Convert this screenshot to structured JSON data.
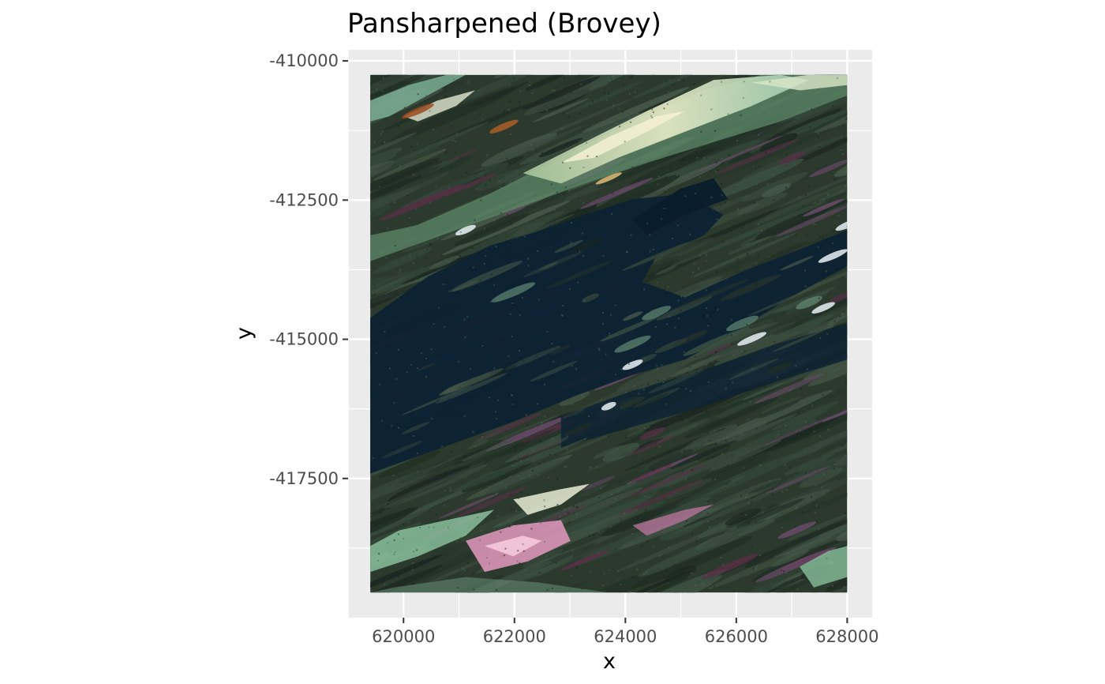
{
  "chart_data": {
    "type": "heatmap",
    "title": "Pansharpened (Brovey)",
    "xlabel": "x",
    "ylabel": "y",
    "xlim": [
      619000,
      628450
    ],
    "ylim": [
      -420000,
      -409800
    ],
    "raster_extent": {
      "x": [
        619400,
        628000
      ],
      "y": [
        -419550,
        -410250
      ]
    },
    "x_ticks": [
      620000,
      622000,
      624000,
      626000,
      628000
    ],
    "x_tick_labels": [
      "620000",
      "622000",
      "624000",
      "626000",
      "628000"
    ],
    "y_ticks": [
      -410000,
      -412500,
      -415000,
      -417500
    ],
    "y_tick_labels": [
      "-410000",
      "-412500",
      "-415000",
      "-417500"
    ],
    "grid": true,
    "legend": "none",
    "colors": {
      "panel_bg": "#ebebeb",
      "grid": "#ffffff",
      "forest": "#2b3a2c",
      "water": "#0d2233",
      "bright_field": "#c9d9a8",
      "pink_patch": "#e39ac0",
      "magenta_strip": "#5a2f48"
    }
  }
}
